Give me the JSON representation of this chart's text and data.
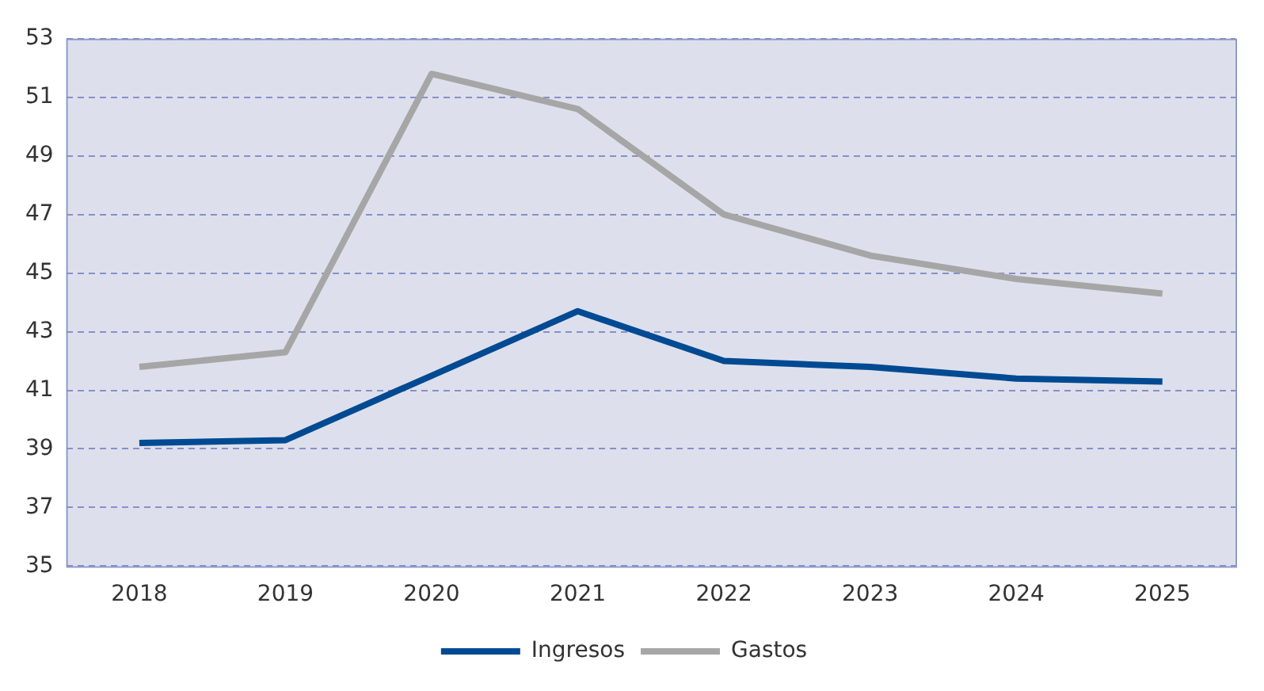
{
  "chart_data": {
    "type": "line",
    "categories": [
      "2018",
      "2019",
      "2020",
      "2021",
      "2022",
      "2023",
      "2024",
      "2025"
    ],
    "series": [
      {
        "name": "Ingresos",
        "color": "#004a93",
        "values": [
          39.2,
          39.3,
          41.5,
          43.7,
          42.0,
          41.8,
          41.4,
          41.3
        ]
      },
      {
        "name": "Gastos",
        "color": "#a6a6a6",
        "values": [
          41.8,
          42.3,
          51.8,
          50.6,
          47.0,
          45.6,
          44.8,
          44.3
        ]
      }
    ],
    "ylim": [
      35,
      53
    ],
    "yticks": [
      35,
      37,
      39,
      41,
      43,
      45,
      47,
      49,
      51,
      53
    ],
    "grid": "y",
    "legend": "bottom",
    "marker": "none",
    "line_style": "solid"
  }
}
